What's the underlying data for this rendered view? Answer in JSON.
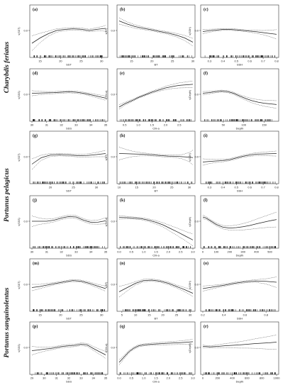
{
  "species": [
    "Charybdis feriatus",
    "Portunus pelagicus",
    "Portunus sanguinolentus"
  ],
  "chart_data": [
    {
      "label": "(a)",
      "type": "line",
      "xlabel": "SST",
      "ylabel": "s(SST)",
      "xticks": [
        "15",
        "20",
        "25",
        "30"
      ],
      "xlim": [
        13,
        31
      ],
      "ylim": [
        -1,
        1
      ],
      "yticks": [
        "0.0"
      ],
      "series": [
        {
          "x": [
            13,
            15,
            17,
            19,
            21,
            23,
            25,
            27,
            28,
            29,
            30,
            31
          ],
          "y": [
            -0.6,
            -0.35,
            -0.15,
            0.0,
            0.05,
            0.08,
            0.06,
            0.0,
            0.03,
            0.06,
            0.08,
            0.1
          ],
          "band": [
            0.35,
            0.22,
            0.12,
            0.08,
            0.06,
            0.06,
            0.06,
            0.06,
            0.07,
            0.08,
            0.1,
            0.14
          ]
        }
      ]
    },
    {
      "label": "(b)",
      "type": "line",
      "xlabel": "BT",
      "ylabel": "s(BT)",
      "xticks": [
        "15",
        "20",
        "25",
        "30"
      ],
      "xlim": [
        12,
        30
      ],
      "ylim": [
        -1,
        1
      ],
      "yticks": [
        "0.0"
      ],
      "series": [
        {
          "x": [
            12,
            14,
            16,
            18,
            20,
            22,
            24,
            26,
            28,
            30
          ],
          "y": [
            0.45,
            0.3,
            0.18,
            0.1,
            0.03,
            -0.05,
            -0.12,
            -0.22,
            -0.35,
            -0.55
          ],
          "band": [
            0.15,
            0.1,
            0.08,
            0.06,
            0.05,
            0.05,
            0.06,
            0.08,
            0.12,
            0.18
          ]
        }
      ]
    },
    {
      "label": "(c)",
      "type": "line",
      "xlabel": "SSH",
      "ylabel": "s(SSH)",
      "xticks": [
        "0.3",
        "0.4",
        "0.5",
        "0.6",
        "0.7",
        "0.8"
      ],
      "xlim": [
        0.25,
        0.8
      ],
      "ylim": [
        -1,
        1
      ],
      "yticks": [
        "0.0"
      ],
      "series": [
        {
          "x": [
            0.25,
            0.3,
            0.35,
            0.4,
            0.45,
            0.5,
            0.55,
            0.6,
            0.65,
            0.7,
            0.75,
            0.8
          ],
          "y": [
            -0.05,
            -0.01,
            0.02,
            0.05,
            0.05,
            0.03,
            0.0,
            -0.03,
            -0.06,
            -0.1,
            -0.14,
            -0.18
          ],
          "band": [
            0.1,
            0.07,
            0.05,
            0.04,
            0.04,
            0.04,
            0.04,
            0.05,
            0.07,
            0.1,
            0.15,
            0.22
          ]
        }
      ]
    },
    {
      "label": "(d)",
      "type": "line",
      "xlabel": "SSS",
      "ylabel": "s(SSS)",
      "xticks": [
        "30",
        "31",
        "32",
        "33",
        "34",
        "35"
      ],
      "xlim": [
        30,
        35
      ],
      "ylim": [
        -1,
        1
      ],
      "yticks": [
        "0.0"
      ],
      "series": [
        {
          "x": [
            30,
            30.5,
            31,
            31.5,
            32,
            32.5,
            33,
            33.5,
            34,
            34.5,
            35
          ],
          "y": [
            0.05,
            0.06,
            0.07,
            0.08,
            0.1,
            0.12,
            0.1,
            0.05,
            -0.02,
            -0.1,
            -0.18
          ],
          "band": [
            0.12,
            0.08,
            0.06,
            0.05,
            0.05,
            0.05,
            0.05,
            0.05,
            0.06,
            0.08,
            0.1
          ]
        }
      ]
    },
    {
      "label": "(e)",
      "type": "line",
      "xlabel": "Chl-a",
      "ylabel": "s(Chl-a)",
      "xticks": [
        "0.5",
        "1.0",
        "1.5",
        "2.0",
        "2.5"
      ],
      "xlim": [
        0.3,
        3
      ],
      "ylim": [
        -1,
        1
      ],
      "yticks": [
        "0.0"
      ],
      "series": [
        {
          "x": [
            0.3,
            0.5,
            0.8,
            1.0,
            1.3,
            1.5,
            1.8,
            2.0,
            2.3,
            2.5,
            2.8,
            3.0
          ],
          "y": [
            -0.6,
            -0.45,
            -0.28,
            -0.15,
            0.0,
            0.1,
            0.22,
            0.3,
            0.38,
            0.42,
            0.45,
            0.47
          ],
          "band": [
            0.1,
            0.07,
            0.05,
            0.04,
            0.04,
            0.05,
            0.06,
            0.08,
            0.1,
            0.12,
            0.14,
            0.16
          ]
        }
      ]
    },
    {
      "label": "(f)",
      "type": "line",
      "xlabel": "Depth",
      "ylabel": "s(Depth)",
      "xticks": [
        "50",
        "100",
        "150"
      ],
      "xlim": [
        0,
        180
      ],
      "ylim": [
        -1,
        1
      ],
      "yticks": [
        "0.0"
      ],
      "series": [
        {
          "x": [
            0,
            15,
            30,
            45,
            60,
            75,
            90,
            105,
            120,
            135,
            150,
            165,
            180
          ],
          "y": [
            0.05,
            0.08,
            0.12,
            0.15,
            0.13,
            0.05,
            -0.08,
            -0.2,
            -0.3,
            -0.37,
            -0.42,
            -0.45,
            -0.48
          ],
          "band": [
            0.08,
            0.06,
            0.05,
            0.05,
            0.05,
            0.05,
            0.06,
            0.08,
            0.1,
            0.12,
            0.14,
            0.16,
            0.18
          ]
        }
      ]
    },
    {
      "label": "(g)",
      "type": "line",
      "xlabel": "SST",
      "ylabel": "s(SST)",
      "xticks": [
        "20",
        "25",
        "30"
      ],
      "xlim": [
        16,
        32
      ],
      "ylim": [
        -1,
        1
      ],
      "yticks": [
        "0.0"
      ],
      "series": [
        {
          "x": [
            16,
            18,
            20,
            22,
            24,
            26,
            28,
            30,
            32
          ],
          "y": [
            -0.35,
            -0.05,
            0.08,
            0.1,
            0.08,
            0.05,
            0.06,
            0.1,
            0.15
          ],
          "band": [
            0.25,
            0.12,
            0.07,
            0.06,
            0.06,
            0.06,
            0.07,
            0.1,
            0.15
          ]
        }
      ]
    },
    {
      "label": "(h)",
      "type": "line",
      "xlabel": "BT",
      "ylabel": "s(BT)",
      "xticks": [
        "10",
        "15",
        "20",
        "25",
        "30"
      ],
      "xlim": [
        10,
        31
      ],
      "ylim": [
        -1,
        1
      ],
      "yticks": [
        "0.0"
      ],
      "series": [
        {
          "x": [
            10,
            12,
            14,
            16,
            18,
            20,
            22,
            24,
            26,
            28,
            30,
            31
          ],
          "y": [
            0.15,
            0.14,
            0.13,
            0.12,
            0.1,
            0.08,
            0.05,
            0.03,
            0.02,
            0.0,
            -0.02,
            -0.04
          ],
          "band": [
            0.3,
            0.2,
            0.12,
            0.08,
            0.06,
            0.05,
            0.05,
            0.05,
            0.06,
            0.1,
            0.22,
            0.35
          ]
        }
      ]
    },
    {
      "label": "(i)",
      "type": "line",
      "xlabel": "SSH",
      "ylabel": "s(SSH)",
      "xticks": [
        "0.3",
        "0.4",
        "0.5",
        "0.6",
        "0.7",
        "0.8"
      ],
      "xlim": [
        0.25,
        0.8
      ],
      "ylim": [
        -1,
        1
      ],
      "yticks": [
        "0.0"
      ],
      "series": [
        {
          "x": [
            0.25,
            0.3,
            0.35,
            0.4,
            0.45,
            0.5,
            0.55,
            0.6,
            0.65,
            0.7,
            0.75,
            0.8
          ],
          "y": [
            -0.25,
            -0.22,
            -0.2,
            -0.18,
            -0.14,
            -0.06,
            0.02,
            0.08,
            0.12,
            0.13,
            0.14,
            0.15
          ],
          "band": [
            0.15,
            0.1,
            0.07,
            0.06,
            0.05,
            0.05,
            0.05,
            0.06,
            0.07,
            0.08,
            0.1,
            0.12
          ]
        }
      ]
    },
    {
      "label": "(j)",
      "type": "line",
      "xlabel": "SSS",
      "ylabel": "s(SSS)",
      "xticks": [
        "30",
        "31",
        "32",
        "33",
        "34",
        "35"
      ],
      "xlim": [
        30,
        35
      ],
      "ylim": [
        -1,
        1
      ],
      "yticks": [
        "0.0"
      ],
      "series": [
        {
          "x": [
            30,
            30.5,
            31,
            31.5,
            32,
            32.5,
            33,
            33.5,
            34,
            34.5,
            35
          ],
          "y": [
            0.0,
            0.0,
            0.0,
            0.05,
            0.15,
            0.22,
            0.2,
            0.05,
            -0.05,
            -0.04,
            0.02
          ],
          "band": [
            0.25,
            0.15,
            0.1,
            0.08,
            0.07,
            0.07,
            0.07,
            0.07,
            0.08,
            0.1,
            0.14
          ]
        }
      ]
    },
    {
      "label": "(k)",
      "type": "line",
      "xlabel": "Chl-a",
      "ylabel": "s(Chl-a)",
      "xticks": [
        "0.0",
        "0.5",
        "1.0",
        "1.5",
        "2.0",
        "2.5",
        "3.0"
      ],
      "xlim": [
        0,
        3
      ],
      "ylim": [
        -1,
        1
      ],
      "yticks": [
        "0.0"
      ],
      "series": [
        {
          "x": [
            0,
            0.3,
            0.6,
            0.9,
            1.2,
            1.5,
            1.8,
            2.1,
            2.4,
            2.7,
            3.0
          ],
          "y": [
            0.18,
            0.17,
            0.15,
            0.12,
            0.05,
            -0.05,
            -0.18,
            -0.35,
            -0.52,
            -0.7,
            -0.88
          ],
          "band": [
            0.08,
            0.06,
            0.05,
            0.05,
            0.06,
            0.08,
            0.1,
            0.14,
            0.18,
            0.22,
            0.28
          ]
        }
      ]
    },
    {
      "label": "(l)",
      "type": "line",
      "xlabel": "Depth",
      "ylabel": "s(Depth)",
      "xticks": [
        "0",
        "100",
        "200",
        "300",
        "400",
        "500"
      ],
      "xlim": [
        0,
        550
      ],
      "ylim": [
        -1,
        1
      ],
      "yticks": [
        "0.0"
      ],
      "series": [
        {
          "x": [
            0,
            25,
            50,
            100,
            150,
            200,
            250,
            300,
            350,
            400,
            450,
            500,
            550
          ],
          "y": [
            0.2,
            0.15,
            0.05,
            -0.15,
            -0.28,
            -0.32,
            -0.3,
            -0.26,
            -0.2,
            -0.12,
            -0.05,
            0.02,
            0.08
          ],
          "band": [
            0.08,
            0.07,
            0.06,
            0.07,
            0.08,
            0.1,
            0.12,
            0.15,
            0.18,
            0.22,
            0.26,
            0.3,
            0.35
          ]
        }
      ]
    },
    {
      "label": "(m)",
      "type": "line",
      "xlabel": "SST",
      "ylabel": "s(SST)",
      "xticks": [
        "15",
        "20",
        "25",
        "30"
      ],
      "xlim": [
        13,
        31
      ],
      "ylim": [
        -1,
        1
      ],
      "yticks": [
        "0.0"
      ],
      "series": [
        {
          "x": [
            13,
            15,
            17,
            19,
            21,
            23,
            25,
            27,
            29,
            31
          ],
          "y": [
            -0.15,
            -0.1,
            -0.02,
            0.05,
            0.12,
            0.18,
            0.15,
            0.05,
            -0.08,
            -0.2
          ],
          "band": [
            0.15,
            0.1,
            0.07,
            0.05,
            0.05,
            0.05,
            0.05,
            0.06,
            0.08,
            0.12
          ]
        }
      ]
    },
    {
      "label": "(n)",
      "type": "line",
      "xlabel": "BT",
      "ylabel": "s(BT)",
      "xticks": [
        "5",
        "10",
        "15",
        "20",
        "25",
        "30"
      ],
      "xlim": [
        4,
        31
      ],
      "ylim": [
        -1,
        1
      ],
      "yticks": [
        "0.0"
      ],
      "series": [
        {
          "x": [
            4,
            7,
            10,
            13,
            16,
            19,
            22,
            25,
            28,
            31
          ],
          "y": [
            -0.35,
            -0.15,
            0.05,
            0.18,
            0.2,
            0.15,
            0.05,
            -0.1,
            -0.25,
            -0.42
          ],
          "band": [
            0.25,
            0.15,
            0.08,
            0.06,
            0.05,
            0.05,
            0.06,
            0.07,
            0.1,
            0.15
          ]
        }
      ]
    },
    {
      "label": "(o)",
      "type": "line",
      "xlabel": "SSH",
      "ylabel": "s(SSH)",
      "xticks": [
        "0.2",
        "0.4",
        "0.6",
        "0.8"
      ],
      "xlim": [
        0.2,
        0.9
      ],
      "ylim": [
        -1,
        1
      ],
      "yticks": [
        "0.0"
      ],
      "series": [
        {
          "x": [
            0.2,
            0.3,
            0.4,
            0.5,
            0.6,
            0.7,
            0.8,
            0.9
          ],
          "y": [
            -0.2,
            -0.12,
            -0.04,
            0.05,
            0.12,
            0.16,
            0.14,
            0.1
          ],
          "band": [
            0.12,
            0.08,
            0.05,
            0.05,
            0.05,
            0.06,
            0.12,
            0.25
          ]
        }
      ]
    },
    {
      "label": "(p)",
      "type": "line",
      "xlabel": "SSS",
      "ylabel": "s(SSS)",
      "xticks": [
        "29",
        "30",
        "31",
        "32",
        "33",
        "34",
        "35"
      ],
      "xlim": [
        29,
        35
      ],
      "ylim": [
        -1,
        1
      ],
      "yticks": [
        "0.0"
      ],
      "series": [
        {
          "x": [
            29,
            29.5,
            30,
            30.5,
            31,
            31.5,
            32,
            32.5,
            33,
            33.5,
            34,
            34.5,
            35
          ],
          "y": [
            -0.15,
            -0.12,
            -0.08,
            -0.05,
            0.0,
            0.05,
            0.08,
            0.1,
            0.15,
            0.12,
            -0.05,
            -0.2,
            -0.35
          ],
          "band": [
            0.2,
            0.14,
            0.1,
            0.07,
            0.06,
            0.06,
            0.06,
            0.06,
            0.06,
            0.07,
            0.09,
            0.12,
            0.16
          ]
        }
      ]
    },
    {
      "label": "(q)",
      "type": "line",
      "xlabel": "Chl-a",
      "ylabel": "s(Chl-a)",
      "xticks": [
        "0.0",
        "0.5",
        "1.0",
        "1.5",
        "2.0",
        "2.5",
        "3.0"
      ],
      "xlim": [
        0,
        3
      ],
      "ylim": [
        -1,
        1
      ],
      "yticks": [
        "0.0"
      ],
      "series": [
        {
          "x": [
            0,
            0.2,
            0.4,
            0.6,
            0.8,
            1.0,
            1.3,
            1.6,
            2.0,
            2.4,
            2.8,
            3.0
          ],
          "y": [
            -0.7,
            -0.45,
            -0.2,
            -0.03,
            0.08,
            0.12,
            0.15,
            0.17,
            0.2,
            0.22,
            0.25,
            0.27
          ],
          "band": [
            0.12,
            0.08,
            0.06,
            0.05,
            0.05,
            0.05,
            0.05,
            0.06,
            0.07,
            0.08,
            0.1,
            0.12
          ]
        }
      ]
    },
    {
      "label": "(r)",
      "type": "line",
      "xlabel": "Depth",
      "ylabel": "s(Depth)",
      "xticks": [
        "0",
        "200",
        "400",
        "600",
        "800",
        "1000"
      ],
      "xlim": [
        0,
        1000
      ],
      "ylim": [
        -1,
        1
      ],
      "yticks": [
        "0.0"
      ],
      "series": [
        {
          "x": [
            0,
            50,
            100,
            200,
            300,
            400,
            500,
            600,
            700,
            800,
            900,
            1000
          ],
          "y": [
            0.05,
            0.04,
            0.03,
            0.05,
            0.08,
            0.1,
            0.12,
            0.15,
            0.18,
            0.2,
            0.22,
            0.25
          ],
          "band": [
            0.06,
            0.05,
            0.05,
            0.07,
            0.1,
            0.12,
            0.15,
            0.18,
            0.22,
            0.26,
            0.3,
            0.34
          ]
        }
      ]
    }
  ]
}
